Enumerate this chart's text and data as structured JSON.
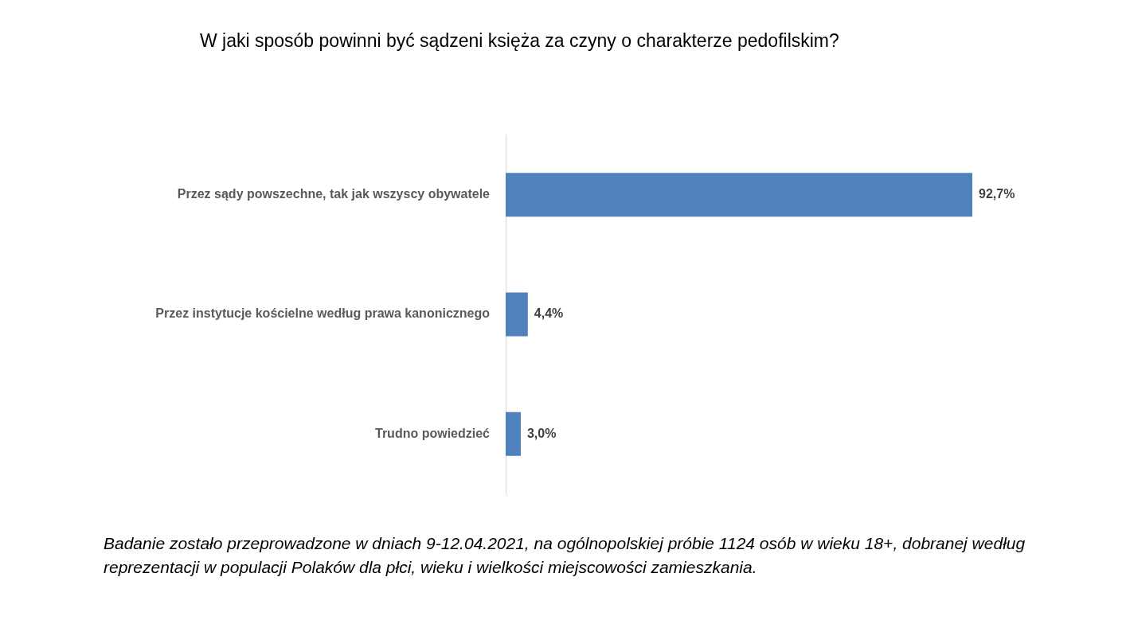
{
  "chart_data": {
    "type": "bar",
    "orientation": "horizontal",
    "title": "W jaki sposób powinni być sądzeni księża za czyny o charakterze pedofilskim?",
    "categories": [
      "Przez sądy powszechne, tak jak wszyscy obywatele",
      "Przez instytucje kościelne według prawa kanonicznego",
      "Trudno powiedzieć"
    ],
    "values": [
      92.7,
      4.4,
      3.0
    ],
    "value_labels": [
      "92,7%",
      "4,4%",
      "3,0%"
    ],
    "color": "#4f81bd",
    "tick_labels": "y",
    "annotations": [
      "Badanie zostało przeprowadzone w dniach 9-12.04.2021, na ogólnopolskiej próbie 1124 osób w wieku 18+, dobranej według reprezentacji w populacji Polaków dla płci, wieku i wielkości miejscowości zamieszkania."
    ]
  }
}
